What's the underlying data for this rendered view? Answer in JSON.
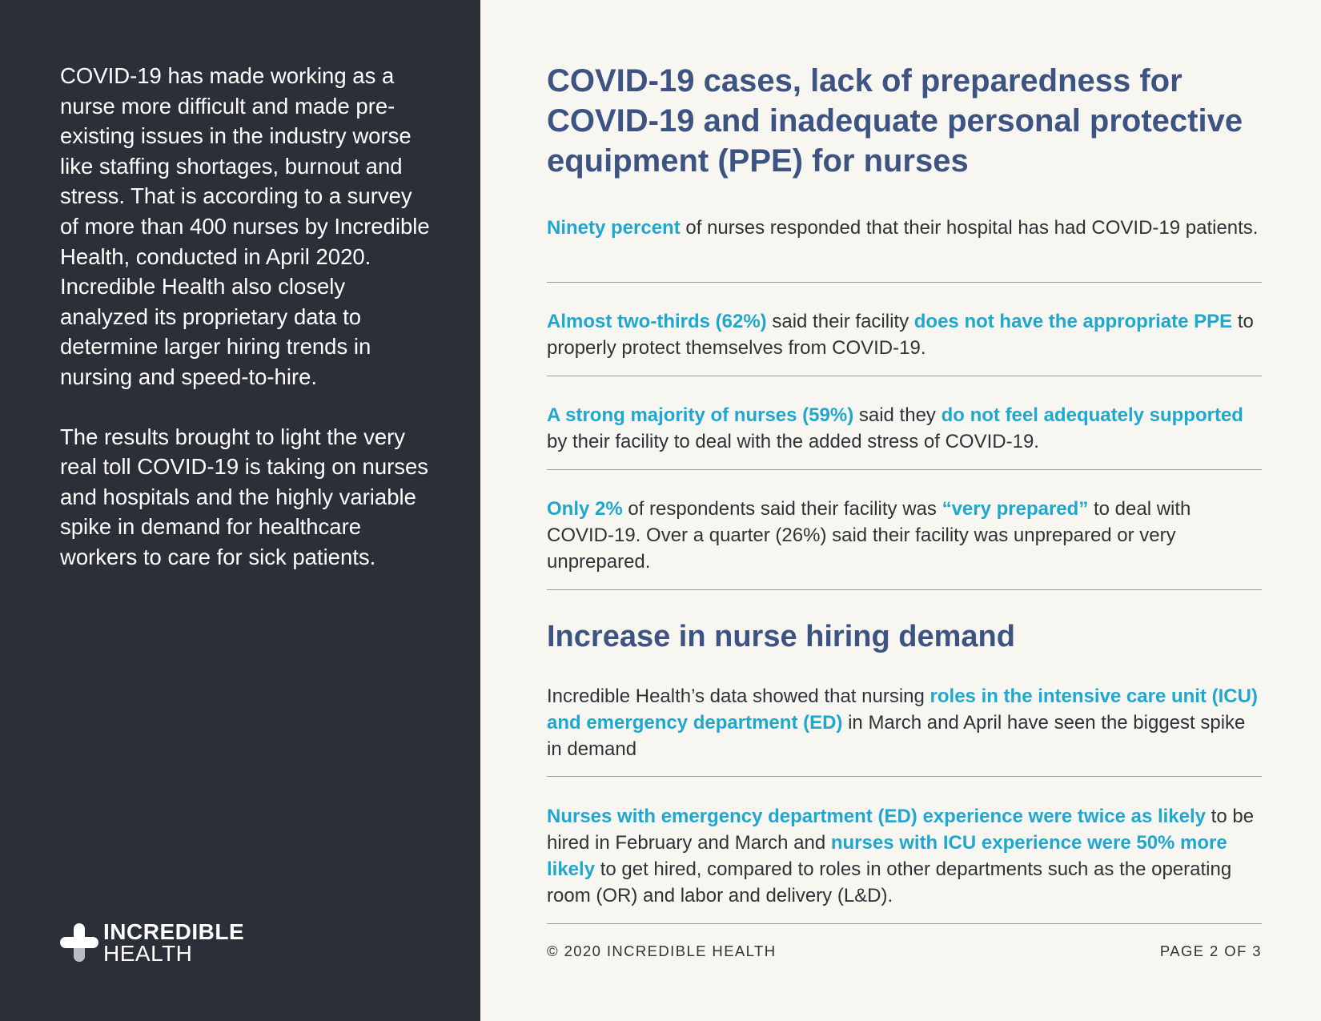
{
  "sidebar": {
    "paragraphs": [
      "COVID-19 has made working as a nurse more difficult and made pre-existing issues in the industry worse like staffing shortages, burnout and stress. That is according to a survey of more than 400 nurses by Incredible Health, conducted in April 2020. Incredible Health also closely analyzed its proprietary data to determine larger hiring trends in nursing and speed-to-hire.",
      "The results brought to light the very real toll COVID-19 is taking on nurses and hospitals and the highly variable spike in demand for healthcare workers to care for sick patients."
    ],
    "logo": {
      "line1": "INCREDIBLE",
      "line2": "HEALTH",
      "icon": "cross-icon"
    }
  },
  "main": {
    "heading": "COVID-19 cases, lack of preparedness for COVID-19 and inadequate personal protective equipment (PPE) for nurses",
    "stats": [
      {
        "parts": [
          {
            "text": "Ninety percent",
            "highlight": true
          },
          {
            "text": " of nurses responded that their hospital has had COVID-19 patients.",
            "highlight": false
          }
        ]
      },
      {
        "parts": [
          {
            "text": "Almost two-thirds (62%)",
            "highlight": true
          },
          {
            "text": " said their facility ",
            "highlight": false
          },
          {
            "text": "does not have the appropriate PPE",
            "highlight": true
          },
          {
            "text": " to properly protect themselves from COVID-19.",
            "highlight": false
          }
        ]
      },
      {
        "parts": [
          {
            "text": "A strong majority of nurses (59%)",
            "highlight": true
          },
          {
            "text": " said they ",
            "highlight": false
          },
          {
            "text": "do not feel adequately supported",
            "highlight": true
          },
          {
            "text": " by their facility to deal with the added stress of COVID-19.",
            "highlight": false
          }
        ]
      },
      {
        "parts": [
          {
            "text": "Only 2%",
            "highlight": true
          },
          {
            "text": " of respondents said their facility was ",
            "highlight": false
          },
          {
            "text": "“very prepared”",
            "highlight": true
          },
          {
            "text": " to deal with COVID-19. Over a quarter (26%) said their facility was unprepared or very unprepared.",
            "highlight": false
          }
        ]
      }
    ],
    "subheading": "Increase in nurse hiring demand",
    "hiring": [
      {
        "parts": [
          {
            "text": "Incredible Health’s data showed that nursing ",
            "highlight": false
          },
          {
            "text": "roles in the intensive care unit (ICU) and emergency department (ED)",
            "highlight": true
          },
          {
            "text": " in March and April have seen the biggest spike in demand",
            "highlight": false
          }
        ]
      },
      {
        "parts": [
          {
            "text": "Nurses with emergency department (ED) experience were twice as likely",
            "highlight": true
          },
          {
            "text": " to be hired in February and March and ",
            "highlight": false
          },
          {
            "text": "nurses with ICU experience were 50% more likely",
            "highlight": true
          },
          {
            "text": " to get hired, compared to roles in other departments such as the operating room (OR) and labor and delivery (L&D).",
            "highlight": false
          }
        ]
      }
    ],
    "footer": {
      "copyright": "© 2020 INCREDIBLE HEALTH",
      "page": "PAGE 2 OF 3"
    }
  },
  "colors": {
    "sidebar_bg": "#2b2f37",
    "page_bg": "#f7f6f1",
    "heading": "#3d5483",
    "highlight": "#1fa7cf",
    "body_text": "#2f3338"
  }
}
